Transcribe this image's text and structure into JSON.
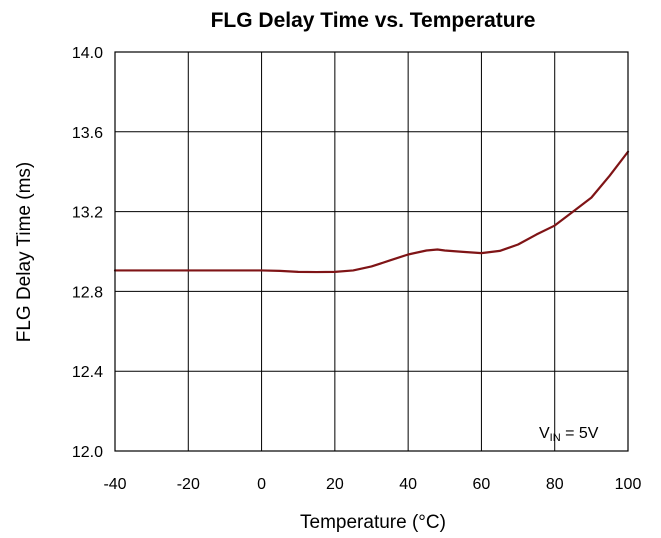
{
  "chart_data": {
    "type": "line",
    "title": "FLG Delay Time vs. Temperature",
    "xlabel": "Temperature (°C)",
    "ylabel": "FLG Delay Time (ms)",
    "xlim": [
      -40,
      100
    ],
    "ylim": [
      12.0,
      14.0
    ],
    "x_ticks": [
      -40,
      -20,
      0,
      20,
      40,
      60,
      80,
      100
    ],
    "y_ticks": [
      12.0,
      12.4,
      12.8,
      13.2,
      13.6,
      14.0
    ],
    "x_tick_labels": [
      "-40",
      "-20",
      "0",
      "20",
      "40",
      "60",
      "80",
      "100"
    ],
    "y_tick_labels": [
      "12.0",
      "12.4",
      "12.8",
      "13.2",
      "13.6",
      "14.0"
    ],
    "grid": true,
    "annotation": {
      "main": "V",
      "sub": "IN",
      "suffix": " = 5V",
      "placement": "bottom-right"
    },
    "series": [
      {
        "color": "#7f1416",
        "x": [
          -40,
          -30,
          -20,
          -10,
          0,
          5,
          10,
          15,
          20,
          25,
          30,
          35,
          40,
          45,
          48,
          50,
          55,
          60,
          65,
          70,
          75,
          80,
          85,
          90,
          95,
          100
        ],
        "y": [
          12.905,
          12.905,
          12.905,
          12.905,
          12.905,
          12.903,
          12.898,
          12.897,
          12.898,
          12.905,
          12.925,
          12.955,
          12.985,
          13.005,
          13.01,
          13.005,
          12.998,
          12.992,
          13.003,
          13.035,
          13.085,
          13.13,
          13.2,
          13.27,
          13.38,
          13.5
        ]
      }
    ]
  }
}
